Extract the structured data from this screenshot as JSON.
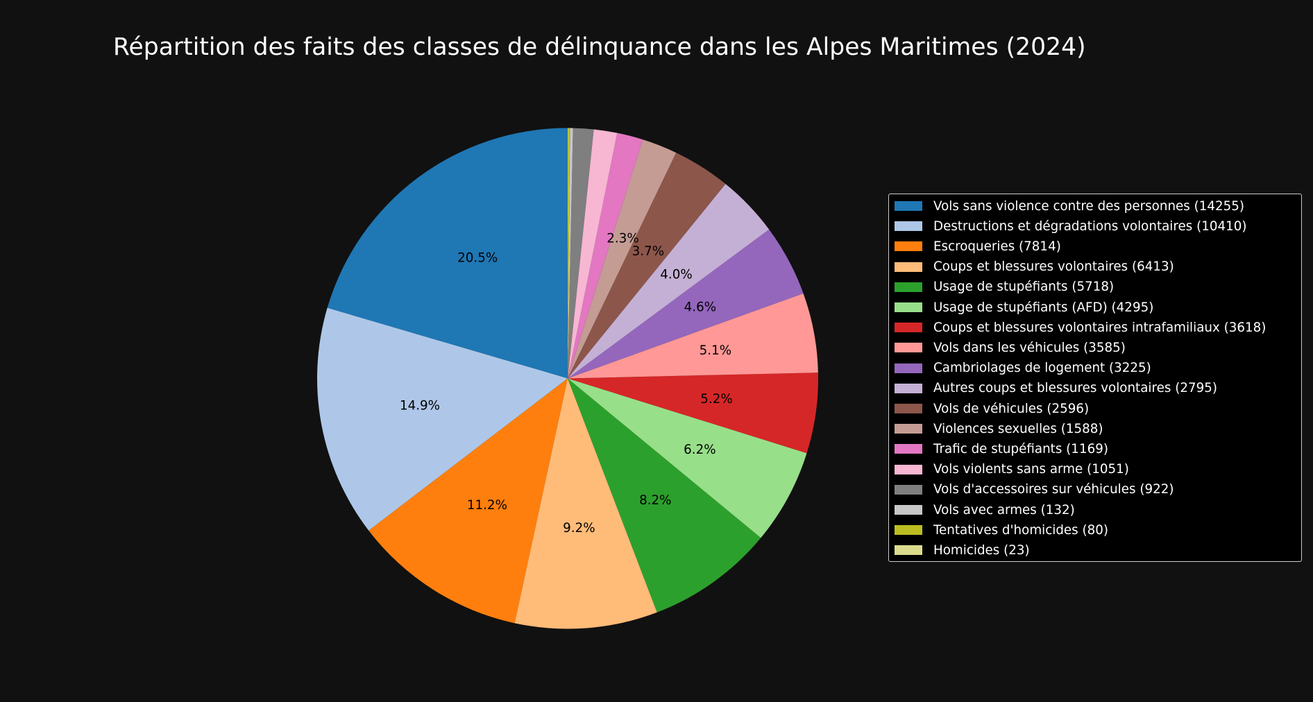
{
  "title": "Répartition des faits des classes de délinquance dans les Alpes Maritimes (2024)",
  "chart_data": {
    "type": "pie",
    "title": "Répartition des faits des classes de délinquance dans les Alpes Maritimes (2024)",
    "start_angle": 90,
    "direction": "counterclockwise",
    "autopct_threshold": 2,
    "legend_position": "right",
    "categories": [
      "Vols sans violence contre des personnes",
      "Destructions et dégradations volontaires",
      "Escroqueries",
      "Coups et blessures volontaires",
      "Usage de stupéfiants",
      "Usage de stupéfiants (AFD)",
      "Coups et blessures volontaires intrafamiliaux",
      "Vols dans les véhicules",
      "Cambriolages de logement",
      "Autres coups et blessures volontaires",
      "Vols de véhicules",
      "Violences sexuelles",
      "Trafic de stupéfiants",
      "Vols violents sans arme",
      "Vols d'accessoires sur véhicules",
      "Vols avec armes",
      "Tentatives d'homicides",
      "Homicides"
    ],
    "values": [
      14255,
      10410,
      7814,
      6413,
      5718,
      4295,
      3618,
      3585,
      3225,
      2795,
      2596,
      1588,
      1169,
      1051,
      922,
      132,
      80,
      23
    ],
    "percent_labels": [
      "20.5%",
      "14.9%",
      "11.2%",
      "9.2%",
      "8.2%",
      "6.2%",
      "5.2%",
      "5.1%",
      "4.6%",
      "4.0%",
      "3.7%",
      "2.3%",
      "",
      "",
      "",
      "",
      "",
      ""
    ],
    "colors": [
      "#1f77b4",
      "#aec7e8",
      "#ff7f0e",
      "#ffbb78",
      "#2ca02c",
      "#98df8a",
      "#d62728",
      "#ff9896",
      "#9467bd",
      "#c5b0d5",
      "#8c564b",
      "#c49c94",
      "#e377c2",
      "#f7b6d2",
      "#7f7f7f",
      "#c7c7c7",
      "#bcbd22",
      "#dbdb8d"
    ]
  },
  "legend": {
    "items": [
      {
        "label": "Vols sans violence contre des personnes (14255)",
        "color": "#1f77b4"
      },
      {
        "label": "Destructions et dégradations volontaires (10410)",
        "color": "#aec7e8"
      },
      {
        "label": "Escroqueries (7814)",
        "color": "#ff7f0e"
      },
      {
        "label": "Coups et blessures volontaires (6413)",
        "color": "#ffbb78"
      },
      {
        "label": "Usage de stupéfiants (5718)",
        "color": "#2ca02c"
      },
      {
        "label": "Usage de stupéfiants (AFD) (4295)",
        "color": "#98df8a"
      },
      {
        "label": "Coups et blessures volontaires intrafamiliaux (3618)",
        "color": "#d62728"
      },
      {
        "label": "Vols dans les véhicules (3585)",
        "color": "#ff9896"
      },
      {
        "label": "Cambriolages de logement (3225)",
        "color": "#9467bd"
      },
      {
        "label": "Autres coups et blessures volontaires (2795)",
        "color": "#c5b0d5"
      },
      {
        "label": "Vols de véhicules (2596)",
        "color": "#8c564b"
      },
      {
        "label": "Violences sexuelles (1588)",
        "color": "#c49c94"
      },
      {
        "label": "Trafic de stupéfiants (1169)",
        "color": "#e377c2"
      },
      {
        "label": "Vols violents sans arme (1051)",
        "color": "#f7b6d2"
      },
      {
        "label": "Vols d'accessoires sur véhicules (922)",
        "color": "#7f7f7f"
      },
      {
        "label": "Vols avec armes (132)",
        "color": "#c7c7c7"
      },
      {
        "label": "Tentatives d'homicides (80)",
        "color": "#bcbd22"
      },
      {
        "label": "Homicides (23)",
        "color": "#dbdb8d"
      }
    ]
  },
  "colors": {
    "background": "#111111",
    "legend_background": "#000000",
    "legend_border": "#cccccc",
    "text": "#ffffff",
    "pct_text": "#000000"
  }
}
